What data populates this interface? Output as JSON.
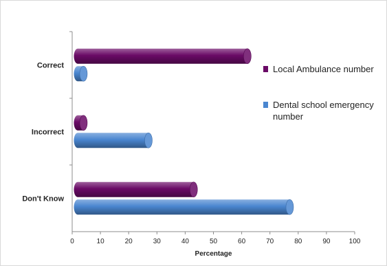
{
  "chart_data": {
    "type": "bar",
    "orientation": "horizontal",
    "categories": [
      "Correct",
      "Incorrect",
      "Don't Know"
    ],
    "series": [
      {
        "name": "Local Ambulance number",
        "values": [
          62,
          4,
          43
        ],
        "color": "#6a0a66"
      },
      {
        "name": "Dental school emergency number",
        "values": [
          4,
          27,
          77
        ],
        "color": "#4a86d0"
      }
    ],
    "xlabel": "Percentage",
    "xlim": [
      0,
      100
    ],
    "xticks": [
      0,
      10,
      20,
      30,
      40,
      50,
      60,
      70,
      80,
      90,
      100
    ],
    "legend_lines": [
      [
        "Local Ambulance number"
      ],
      [
        "Dental school emergency",
        "number"
      ]
    ],
    "legend_position": "right",
    "grid": false
  }
}
